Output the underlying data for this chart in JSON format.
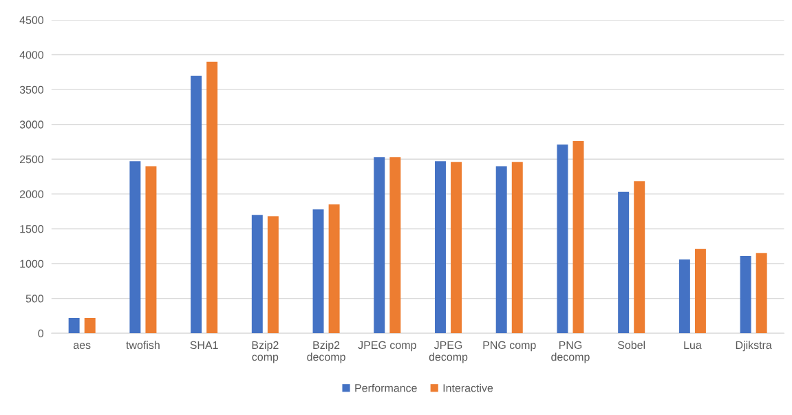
{
  "chart_data": {
    "type": "bar",
    "categories": [
      "aes",
      "twofish",
      "SHA1",
      "Bzip2\ncomp",
      "Bzip2\ndecomp",
      "JPEG comp",
      "JPEG\ndecomp",
      "PNG comp",
      "PNG\ndecomp",
      "Sobel",
      "Lua",
      "Djikstra"
    ],
    "series": [
      {
        "name": "Performance",
        "color": "#4472c4",
        "values": [
          220,
          2470,
          3700,
          1700,
          1780,
          2530,
          2470,
          2400,
          2710,
          2030,
          1060,
          1110
        ]
      },
      {
        "name": "Interactive",
        "color": "#ed7d31",
        "values": [
          220,
          2400,
          3900,
          1680,
          1850,
          2530,
          2460,
          2460,
          2760,
          2185,
          1210,
          1150
        ]
      }
    ],
    "ylim": [
      0,
      4500
    ],
    "yticks": [
      0,
      500,
      1000,
      1500,
      2000,
      2500,
      3000,
      3500,
      4000,
      4500
    ],
    "grid": "y",
    "legend": "bottom"
  }
}
